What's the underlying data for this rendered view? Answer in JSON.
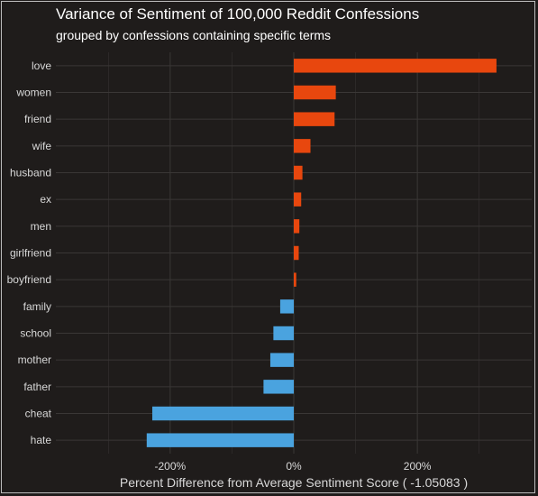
{
  "chart_data": {
    "type": "bar",
    "orientation": "horizontal",
    "title": "Variance of Sentiment of 100,000 Reddit Confessions",
    "subtitle": "grouped by confessions containing specific terms",
    "xlabel": "Percent Difference from Average Sentiment Score ( -1.05083 )",
    "ylabel": "",
    "xlim": [
      -385,
      385
    ],
    "x_ticks": [
      -200,
      0,
      200
    ],
    "x_tick_labels": [
      "-200%",
      "0%",
      "200%"
    ],
    "categories": [
      "love",
      "women",
      "friend",
      "wife",
      "husband",
      "ex",
      "men",
      "girlfriend",
      "boyfriend",
      "family",
      "school",
      "mother",
      "father",
      "cheat",
      "hate"
    ],
    "values": [
      328,
      68,
      66,
      27,
      14,
      12,
      9,
      8,
      4,
      -22,
      -33,
      -38,
      -49,
      -229,
      -238
    ],
    "grid": true,
    "colors": {
      "positive": "#e8470e",
      "negative": "#4aa3df",
      "background": "#1f1c1b",
      "grid": "#3a3736",
      "text": "#ffffff",
      "axis_text": "#d8d8d8"
    }
  }
}
